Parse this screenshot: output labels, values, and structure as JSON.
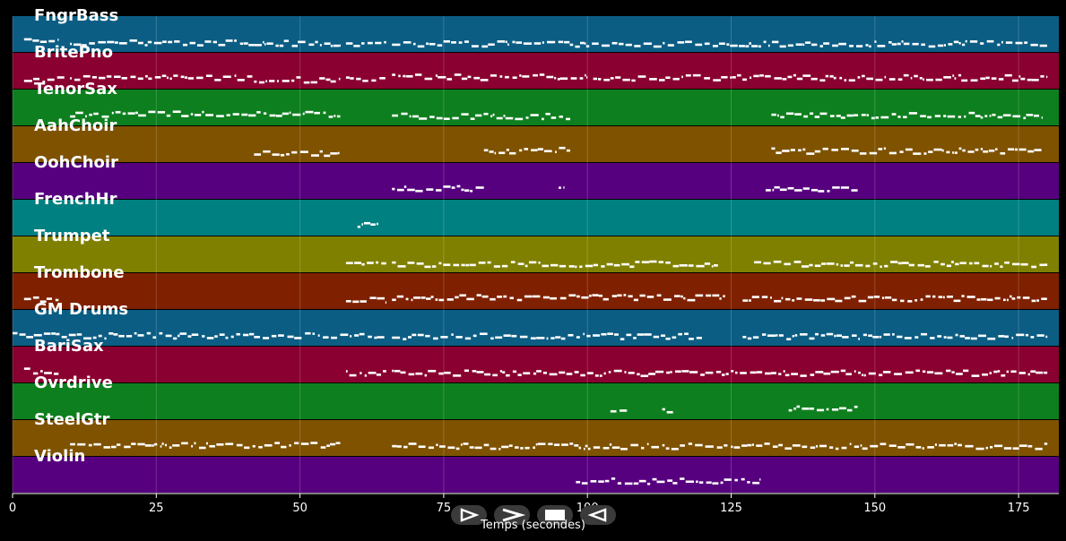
{
  "chart_data": {
    "type": "piano-roll",
    "xlabel": "Temps (secondes)",
    "xlim": [
      0,
      182
    ],
    "xticks": [
      0,
      25,
      50,
      75,
      100,
      125,
      150,
      175
    ],
    "grid": true,
    "tracks": [
      {
        "name": "FngrBass",
        "color": "#0b5d84",
        "segments": [
          [
            2,
            8
          ],
          [
            10,
            42
          ],
          [
            42,
            57
          ],
          [
            58,
            65
          ],
          [
            66,
            180
          ]
        ]
      },
      {
        "name": "BritePno",
        "color": "#8a0030",
        "segments": [
          [
            2,
            9
          ],
          [
            10,
            42
          ],
          [
            42,
            57
          ],
          [
            58,
            65
          ],
          [
            66,
            100
          ],
          [
            101,
            180
          ]
        ]
      },
      {
        "name": "TenorSax",
        "color": "#0e7f1e",
        "segments": [
          [
            10,
            57
          ],
          [
            66,
            97
          ],
          [
            132,
            179
          ]
        ]
      },
      {
        "name": "AahChoir",
        "color": "#7f5200",
        "segments": [
          [
            42,
            57
          ],
          [
            82,
            97
          ],
          [
            132,
            179
          ]
        ]
      },
      {
        "name": "OohChoir",
        "color": "#57007f",
        "segments": [
          [
            66,
            82
          ],
          [
            95,
            96
          ],
          [
            131,
            147
          ]
        ]
      },
      {
        "name": "FrenchHr",
        "color": "#008080",
        "segments": [
          [
            60,
            64
          ]
        ]
      },
      {
        "name": "Trumpet",
        "color": "#808000",
        "segments": [
          [
            58,
            65
          ],
          [
            66,
            123
          ],
          [
            129,
            180
          ]
        ]
      },
      {
        "name": "Trombone",
        "color": "#7f2100",
        "segments": [
          [
            2,
            8
          ],
          [
            58,
            65
          ],
          [
            66,
            124
          ],
          [
            127,
            180
          ]
        ]
      },
      {
        "name": "GM Drums",
        "color": "#0b5d84",
        "segments": [
          [
            0,
            42
          ],
          [
            42,
            65
          ],
          [
            66,
            120
          ],
          [
            127,
            180
          ]
        ]
      },
      {
        "name": "BariSax",
        "color": "#8a0030",
        "segments": [
          [
            2,
            8
          ],
          [
            58,
            65
          ],
          [
            66,
            180
          ]
        ]
      },
      {
        "name": "Ovrdrive",
        "color": "#0e7f1e",
        "segments": [
          [
            104,
            107
          ],
          [
            113,
            115
          ],
          [
            135,
            147
          ]
        ]
      },
      {
        "name": "SteelGtr",
        "color": "#7f5200",
        "segments": [
          [
            10,
            57
          ],
          [
            66,
            180
          ]
        ]
      },
      {
        "name": "Violin",
        "color": "#57007f",
        "segments": [
          [
            98,
            130
          ]
        ]
      }
    ]
  },
  "controls": {
    "play_icon": "play-icon",
    "forward_icon": "forward-icon",
    "stop_icon": "stop-icon",
    "reverse_icon": "reverse-icon"
  }
}
